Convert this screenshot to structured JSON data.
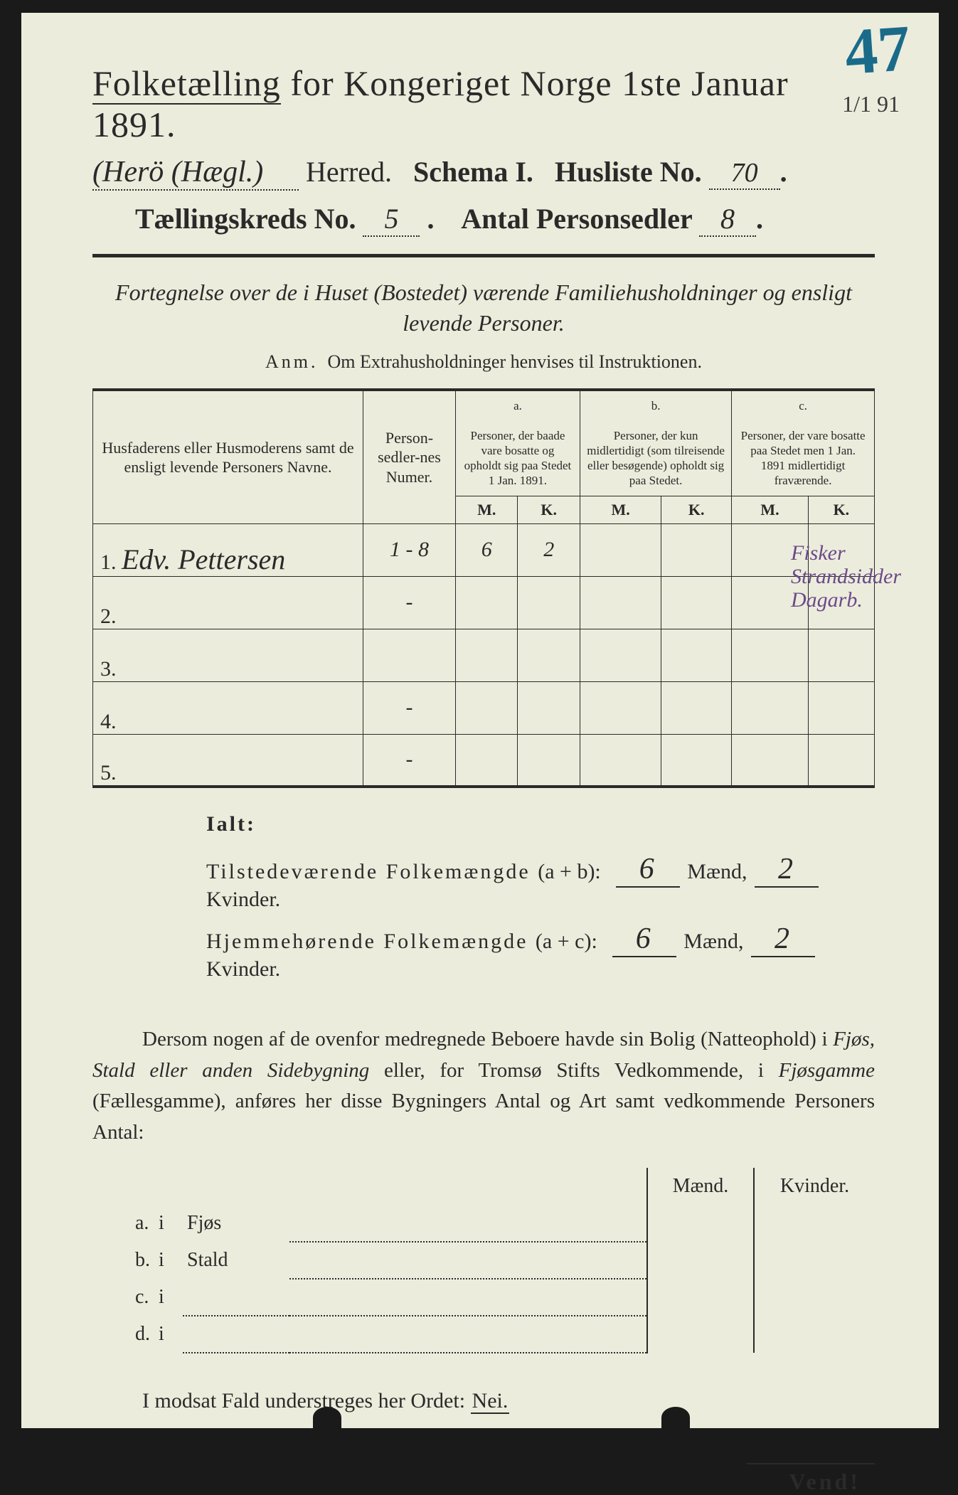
{
  "corner": {
    "big": "47",
    "small": "1/1 91"
  },
  "header": {
    "title_a": "Folketælling",
    "title_b": " for Kongeriget Norge 1ste Januar 1891.",
    "herred_hw": "(Herö (Hægl.)",
    "herred_label": " Herred.",
    "schema": "Schema I.",
    "husliste_label": "Husliste No.",
    "husliste_no": "70",
    "kreds_label": "Tællingskreds No.",
    "kreds_no": "5",
    "antal_label": "Antal Personsedler",
    "antal_no": "8"
  },
  "subtitle": "Fortegnelse over de i Huset (Bostedet) værende Familiehusholdninger og ensligt levende Personer.",
  "anm_label": "Anm.",
  "anm_text": "Om Extrahusholdninger henvises til Instruktionen.",
  "table": {
    "colA": "Husfaderens eller Husmoderens samt de ensligt levende Personers Navne.",
    "colB": "Person-sedler-nes Numer.",
    "a_label": "a.",
    "a_text": "Personer, der baade vare bosatte og opholdt sig paa Stedet 1 Jan. 1891.",
    "b_label": "b.",
    "b_text": "Personer, der kun midlertidigt (som tilreisende eller besøgende) opholdt sig paa Stedet.",
    "c_label": "c.",
    "c_text": "Personer, der vare bosatte paa Stedet men 1 Jan. 1891 midlertidigt fraværende.",
    "M": "M.",
    "K": "K.",
    "rows": [
      {
        "n": "1.",
        "name": "Edv. Pettersen",
        "num": "1 - 8",
        "aM": "6",
        "aK": "2",
        "bM": "",
        "bK": "",
        "cM": "",
        "cK": ""
      },
      {
        "n": "2.",
        "name": "",
        "num": "-",
        "aM": "",
        "aK": "",
        "bM": "",
        "bK": "",
        "cM": "",
        "cK": ""
      },
      {
        "n": "3.",
        "name": "",
        "num": "",
        "aM": "",
        "aK": "",
        "bM": "",
        "bK": "",
        "cM": "",
        "cK": ""
      },
      {
        "n": "4.",
        "name": "",
        "num": "-",
        "aM": "",
        "aK": "",
        "bM": "",
        "bK": "",
        "cM": "",
        "cK": ""
      },
      {
        "n": "5.",
        "name": "",
        "num": "-",
        "aM": "",
        "aK": "",
        "bM": "",
        "bK": "",
        "cM": "",
        "cK": ""
      }
    ],
    "side_note": "Fisker\nStrandsidder\nDagarb."
  },
  "ialt": {
    "title": "Ialt:",
    "row1a": "Tilstedeværende Folkemængde ",
    "row1b": "(a + b):",
    "row2a": "Hjemmehørende Folkemængde ",
    "row2b": "(a + c):",
    "maend": "Mænd,",
    "kvinder": "Kvinder.",
    "v1m": "6",
    "v1k": "2",
    "v2m": "6",
    "v2k": "2"
  },
  "para": "Dersom nogen af de ovenfor medregnede Beboere havde sin Bolig (Natteophold) i Fjøs, Stald eller anden Sidebygning eller, for Tromsø Stifts Vedkommende, i Fjøsgamme (Fællesgamme), anføres her disse Bygningers Antal og Art samt vedkommende Personers Antal:",
  "lower": {
    "maend": "Mænd.",
    "kvinder": "Kvinder.",
    "rows": [
      {
        "l": "a.",
        "i": "i",
        "nm": "Fjøs"
      },
      {
        "l": "b.",
        "i": "i",
        "nm": "Stald"
      },
      {
        "l": "c.",
        "i": "i",
        "nm": ""
      },
      {
        "l": "d.",
        "i": "i",
        "nm": ""
      }
    ]
  },
  "nei": {
    "pre": "I modsat Fald understreges her Ordet: ",
    "word": "Nei."
  },
  "vend": "Vend!"
}
